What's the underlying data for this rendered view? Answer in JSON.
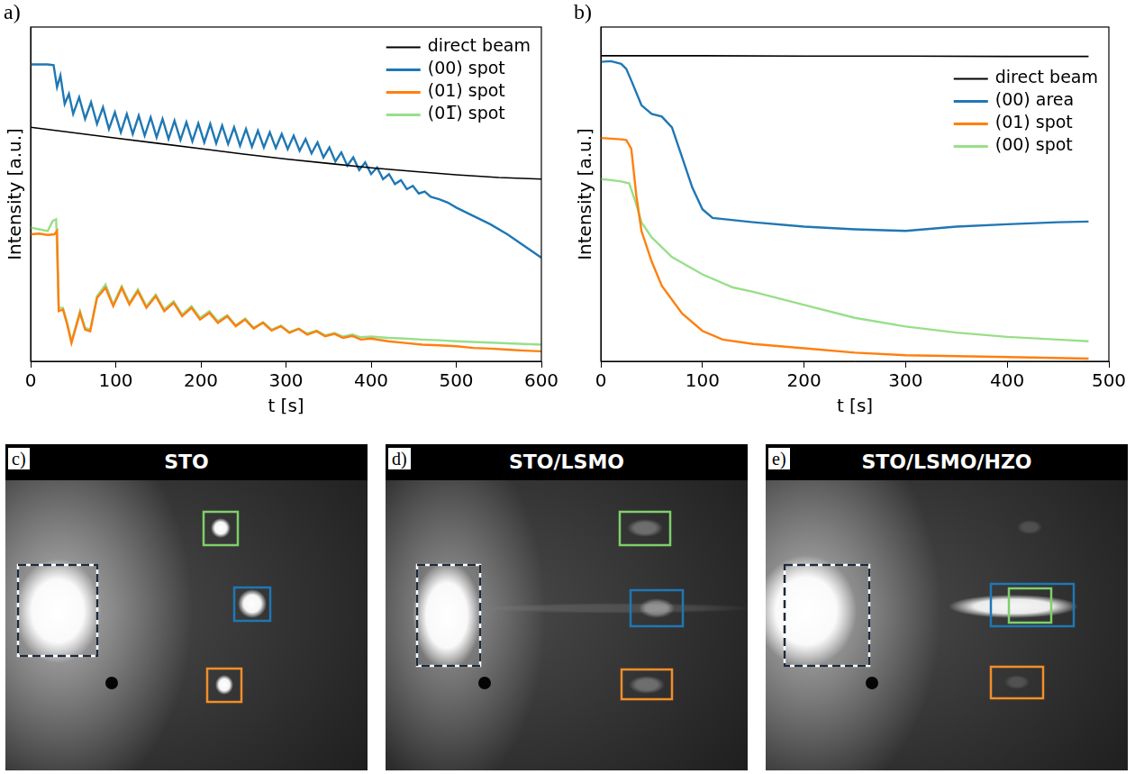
{
  "chart_data": [
    {
      "panel": "a)",
      "type": "line",
      "xlabel": "t [s]",
      "ylabel": "Intensity [a.u.]",
      "xlim": [
        0,
        600
      ],
      "xticks": [
        0,
        100,
        200,
        300,
        400,
        500,
        600
      ],
      "ylim": [
        0,
        10
      ],
      "tick_labels": "x",
      "grid": false,
      "legend": "upper right",
      "series": [
        {
          "name": "direct beam",
          "color": "#000000",
          "x": [
            0,
            50,
            100,
            150,
            200,
            250,
            300,
            350,
            400,
            450,
            500,
            550,
            600
          ],
          "values": [
            7.0,
            6.84,
            6.68,
            6.52,
            6.36,
            6.2,
            6.05,
            5.92,
            5.79,
            5.68,
            5.58,
            5.5,
            5.45
          ]
        },
        {
          "name": "(00) spot",
          "color": "#1f77b4",
          "x": [
            0,
            10,
            20,
            27,
            31,
            35,
            40,
            45,
            50,
            57,
            64,
            71,
            78,
            85,
            92,
            99,
            106,
            113,
            120,
            127,
            134,
            141,
            148,
            155,
            162,
            169,
            176,
            183,
            190,
            197,
            204,
            211,
            218,
            225,
            232,
            239,
            246,
            253,
            260,
            267,
            274,
            281,
            288,
            295,
            302,
            309,
            316,
            323,
            330,
            337,
            344,
            351,
            358,
            365,
            372,
            379,
            386,
            393,
            400,
            407,
            414,
            421,
            428,
            435,
            442,
            449,
            456,
            463,
            470,
            480,
            490,
            500,
            520,
            540,
            560,
            580,
            600
          ],
          "values": [
            8.88,
            8.88,
            8.88,
            8.86,
            8.2,
            8.55,
            7.7,
            8.0,
            7.4,
            7.9,
            7.25,
            7.75,
            7.1,
            7.6,
            6.95,
            7.45,
            6.85,
            7.4,
            6.8,
            7.35,
            6.75,
            7.3,
            6.7,
            7.25,
            6.65,
            7.2,
            6.62,
            7.15,
            6.58,
            7.12,
            6.55,
            7.1,
            6.52,
            7.05,
            6.5,
            7.0,
            6.45,
            6.95,
            6.42,
            6.9,
            6.4,
            6.85,
            6.38,
            6.8,
            6.35,
            6.75,
            6.3,
            6.65,
            6.22,
            6.55,
            6.1,
            6.4,
            5.98,
            6.25,
            5.85,
            6.1,
            5.72,
            5.95,
            5.6,
            5.8,
            5.45,
            5.6,
            5.3,
            5.42,
            5.15,
            5.25,
            5.02,
            5.08,
            4.92,
            4.85,
            4.75,
            4.6,
            4.35,
            4.1,
            3.8,
            3.45,
            3.1
          ]
        },
        {
          "name": "(01) spot",
          "color": "#ff7f0e",
          "x": [
            0,
            10,
            20,
            28,
            31,
            33,
            38,
            43,
            48,
            53,
            58,
            64,
            70,
            78,
            88,
            97,
            107,
            116,
            126,
            136,
            147,
            157,
            168,
            178,
            189,
            199,
            210,
            220,
            231,
            241,
            252,
            262,
            273,
            283,
            294,
            304,
            315,
            325,
            336,
            346,
            357,
            367,
            378,
            388,
            400,
            420,
            440,
            460,
            480,
            500,
            520,
            540,
            560,
            580,
            600
          ],
          "values": [
            3.8,
            3.82,
            3.78,
            3.8,
            3.9,
            1.5,
            1.55,
            1.1,
            0.55,
            1.0,
            1.45,
            0.95,
            0.9,
            1.9,
            2.2,
            1.65,
            2.2,
            1.7,
            2.1,
            1.6,
            1.95,
            1.5,
            1.75,
            1.35,
            1.6,
            1.25,
            1.45,
            1.15,
            1.35,
            1.05,
            1.25,
            0.98,
            1.15,
            0.92,
            1.05,
            0.85,
            0.97,
            0.8,
            0.9,
            0.75,
            0.82,
            0.7,
            0.76,
            0.65,
            0.68,
            0.6,
            0.55,
            0.5,
            0.48,
            0.45,
            0.4,
            0.38,
            0.35,
            0.32,
            0.3
          ]
        },
        {
          "name": "(01̅) spot",
          "color": "#98df8a",
          "x": [
            0,
            10,
            20,
            26,
            30,
            33,
            38,
            43,
            48,
            53,
            58,
            64,
            70,
            78,
            88,
            97,
            107,
            116,
            126,
            136,
            147,
            157,
            168,
            178,
            189,
            199,
            210,
            220,
            231,
            241,
            252,
            262,
            273,
            283,
            294,
            304,
            315,
            325,
            336,
            346,
            357,
            367,
            378,
            388,
            400,
            420,
            440,
            460,
            480,
            500,
            520,
            540,
            560,
            580,
            600
          ],
          "values": [
            4.0,
            3.95,
            3.9,
            4.2,
            4.25,
            1.6,
            1.6,
            1.15,
            0.6,
            1.05,
            1.5,
            1.0,
            0.95,
            1.95,
            2.3,
            1.7,
            2.25,
            1.75,
            2.15,
            1.65,
            2.0,
            1.55,
            1.8,
            1.4,
            1.65,
            1.3,
            1.5,
            1.2,
            1.38,
            1.08,
            1.28,
            1.0,
            1.17,
            0.95,
            1.07,
            0.88,
            0.98,
            0.83,
            0.92,
            0.78,
            0.85,
            0.74,
            0.8,
            0.72,
            0.74,
            0.7,
            0.68,
            0.65,
            0.63,
            0.6,
            0.58,
            0.56,
            0.54,
            0.52,
            0.5
          ]
        }
      ]
    },
    {
      "panel": "b)",
      "type": "line",
      "xlabel": "t [s]",
      "ylabel": "Intensity [a.u.]",
      "xlim": [
        0,
        500
      ],
      "xticks": [
        0,
        100,
        200,
        300,
        400,
        500
      ],
      "ylim": [
        0,
        10
      ],
      "tick_labels": "x",
      "grid": false,
      "legend": "upper right",
      "series": [
        {
          "name": "direct beam",
          "color": "#000000",
          "x": [
            0,
            100,
            200,
            300,
            400,
            480
          ],
          "values": [
            9.14,
            9.14,
            9.13,
            9.13,
            9.12,
            9.12
          ]
        },
        {
          "name": "(00) area",
          "color": "#1f77b4",
          "x": [
            0,
            10,
            20,
            25,
            30,
            40,
            50,
            60,
            70,
            80,
            90,
            100,
            110,
            150,
            200,
            250,
            300,
            350,
            400,
            450,
            480
          ],
          "values": [
            8.96,
            8.98,
            8.9,
            8.75,
            8.4,
            7.66,
            7.4,
            7.32,
            7.0,
            6.1,
            5.2,
            4.55,
            4.29,
            4.16,
            4.03,
            3.95,
            3.9,
            4.03,
            4.1,
            4.16,
            4.18
          ]
        },
        {
          "name": "(01) spot",
          "color": "#ff7f0e",
          "x": [
            0,
            10,
            20,
            25,
            30,
            35,
            40,
            50,
            60,
            80,
            100,
            120,
            150,
            200,
            250,
            300,
            400,
            480
          ],
          "values": [
            6.68,
            6.66,
            6.64,
            6.62,
            6.36,
            4.94,
            3.9,
            2.99,
            2.26,
            1.43,
            0.91,
            0.65,
            0.52,
            0.39,
            0.26,
            0.18,
            0.13,
            0.08
          ]
        },
        {
          "name": "(00) spot",
          "color": "#98df8a",
          "x": [
            0,
            10,
            20,
            28,
            35,
            40,
            50,
            70,
            100,
            130,
            150,
            200,
            250,
            300,
            350,
            400,
            450,
            480
          ],
          "values": [
            5.45,
            5.42,
            5.38,
            5.32,
            4.68,
            4.16,
            3.71,
            3.12,
            2.6,
            2.21,
            2.08,
            1.69,
            1.3,
            1.04,
            0.86,
            0.73,
            0.65,
            0.6
          ]
        }
      ]
    }
  ],
  "images": [
    {
      "panel": "c)",
      "title": "STO"
    },
    {
      "panel": "d)",
      "title": "STO/LSMO"
    },
    {
      "panel": "e)",
      "title": "STO/LSMO/HZO"
    }
  ]
}
